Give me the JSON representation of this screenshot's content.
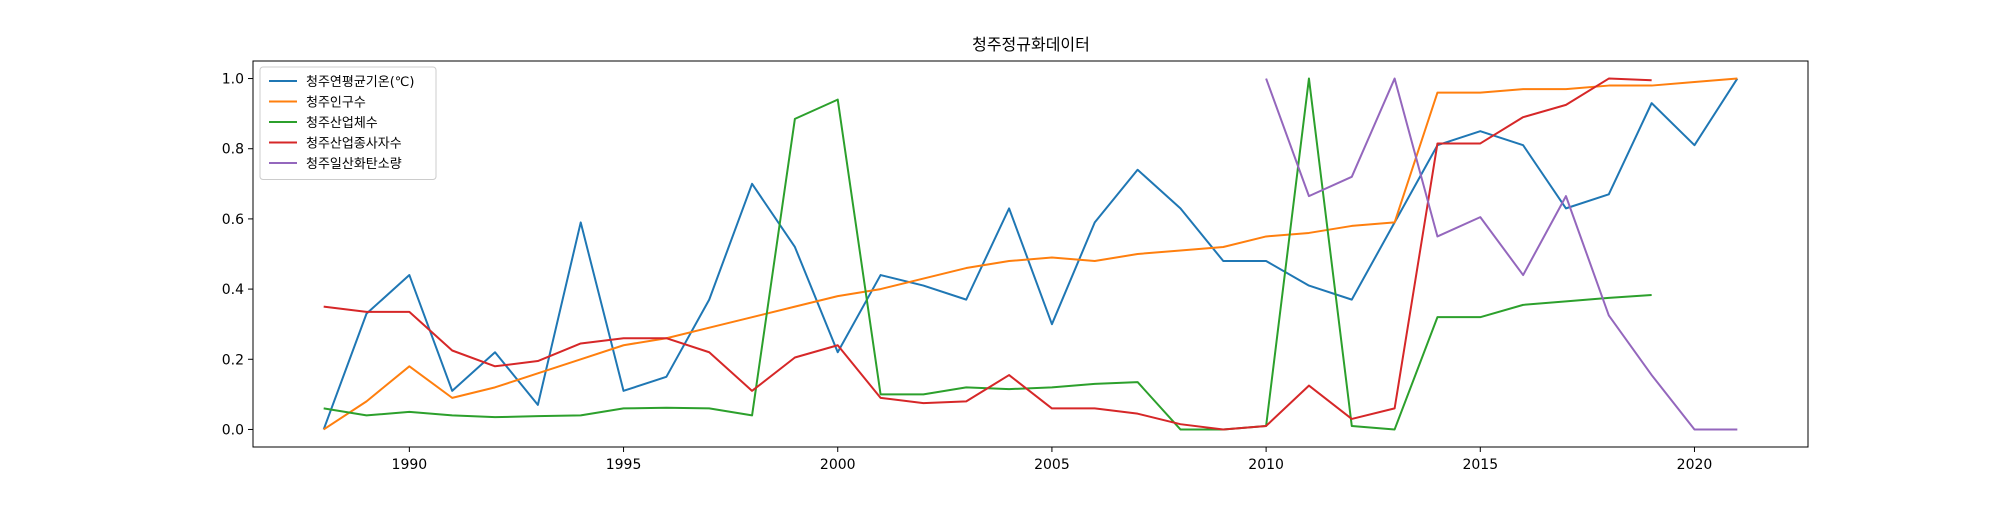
{
  "chart_data": {
    "type": "line",
    "title": "청주정규화데이터",
    "xlabel": "",
    "ylabel": "",
    "xlim": [
      1986.4,
      1987.4
    ],
    "ylim": [
      -0.05,
      1.05
    ],
    "x_ticks": [
      1990,
      1995,
      2000,
      2005,
      2010,
      2015,
      2020
    ],
    "x_tick_labels": [
      "1990",
      "1995",
      "2000",
      "2005",
      "2010",
      "2015",
      "2020"
    ],
    "y_ticks": [
      0.0,
      0.2,
      0.4,
      0.6,
      0.8,
      1.0
    ],
    "y_tick_labels": [
      "0.0",
      "0.2",
      "0.4",
      "0.6",
      "0.8",
      "1.0"
    ],
    "grid": false,
    "legend_position": "top-left",
    "series": [
      {
        "name": "청주연평균기온(℃)",
        "color": "#1f77b4",
        "x": [
          1988,
          1989,
          1990,
          1991,
          1992,
          1993,
          1994,
          1995,
          1996,
          1997,
          1998,
          1999,
          2000,
          2001,
          2002,
          2003,
          2004,
          2005,
          2006,
          2007,
          2008,
          2009,
          2010,
          2011,
          2012,
          2013,
          2014,
          2015,
          2016,
          2017,
          2018,
          2019,
          2020,
          2021
        ],
        "y": [
          0.0,
          0.33,
          0.44,
          0.11,
          0.22,
          0.07,
          0.59,
          0.11,
          0.15,
          0.37,
          0.7,
          0.52,
          0.22,
          0.44,
          0.41,
          0.37,
          0.63,
          0.3,
          0.59,
          0.74,
          0.63,
          0.48,
          0.48,
          0.41,
          0.37,
          0.59,
          0.81,
          0.85,
          0.81,
          0.63,
          0.67,
          0.93,
          0.81,
          1.0
        ]
      },
      {
        "name": "청주인구수",
        "color": "#ff7f0e",
        "x": [
          1988,
          1989,
          1990,
          1991,
          1992,
          1993,
          1994,
          1995,
          1996,
          1997,
          1998,
          1999,
          2000,
          2001,
          2002,
          2003,
          2004,
          2005,
          2006,
          2007,
          2008,
          2009,
          2010,
          2011,
          2012,
          2013,
          2014,
          2015,
          2016,
          2017,
          2018,
          2019,
          2020,
          2021
        ],
        "y": [
          0.0,
          0.08,
          0.18,
          0.09,
          0.12,
          0.16,
          0.2,
          0.24,
          0.26,
          0.29,
          0.32,
          0.35,
          0.38,
          0.4,
          0.43,
          0.46,
          0.48,
          0.49,
          0.48,
          0.5,
          0.51,
          0.52,
          0.55,
          0.56,
          0.58,
          0.59,
          0.96,
          0.96,
          0.97,
          0.97,
          0.98,
          0.98,
          0.99,
          1.0
        ]
      },
      {
        "name": "청주산업체수",
        "color": "#2ca02c",
        "x": [
          1988,
          1989,
          1990,
          1991,
          1992,
          1993,
          1994,
          1995,
          1996,
          1997,
          1998,
          1999,
          2000,
          2001,
          2002,
          2003,
          2004,
          2005,
          2006,
          2007,
          2008,
          2009,
          2010,
          2011,
          2012,
          2013,
          2014,
          2015,
          2016,
          2017,
          2018,
          2019
        ],
        "y": [
          0.06,
          0.04,
          0.05,
          0.04,
          0.035,
          0.038,
          0.04,
          0.06,
          0.062,
          0.06,
          0.04,
          0.885,
          0.94,
          0.1,
          0.1,
          0.12,
          0.115,
          0.12,
          0.13,
          0.135,
          0.0,
          0.0,
          0.01,
          1.0,
          0.01,
          0.0,
          0.32,
          0.32,
          0.355,
          0.365,
          0.375,
          0.383
        ]
      },
      {
        "name": "청주산업종사자수",
        "color": "#d62728",
        "x": [
          1988,
          1989,
          1990,
          1991,
          1992,
          1993,
          1994,
          1995,
          1996,
          1997,
          1998,
          1999,
          2000,
          2001,
          2002,
          2003,
          2004,
          2005,
          2006,
          2007,
          2008,
          2009,
          2010,
          2011,
          2012,
          2013,
          2014,
          2015,
          2016,
          2017,
          2018,
          2019
        ],
        "y": [
          0.35,
          0.335,
          0.335,
          0.225,
          0.18,
          0.195,
          0.245,
          0.26,
          0.26,
          0.22,
          0.11,
          0.205,
          0.24,
          0.09,
          0.075,
          0.08,
          0.155,
          0.06,
          0.06,
          0.045,
          0.015,
          0.0,
          0.01,
          0.125,
          0.03,
          0.06,
          0.815,
          0.815,
          0.89,
          0.925,
          1.0,
          0.995
        ]
      },
      {
        "name": "청주일산화탄소량",
        "color": "#9467bd",
        "x": [
          2010,
          2011,
          2012,
          2013,
          2014,
          2015,
          2016,
          2017,
          2018,
          2019,
          2020,
          2021
        ],
        "y": [
          1.0,
          0.665,
          0.72,
          1.0,
          0.55,
          0.605,
          0.44,
          0.665,
          0.325,
          0.155,
          0.0,
          0.0
        ]
      }
    ]
  }
}
